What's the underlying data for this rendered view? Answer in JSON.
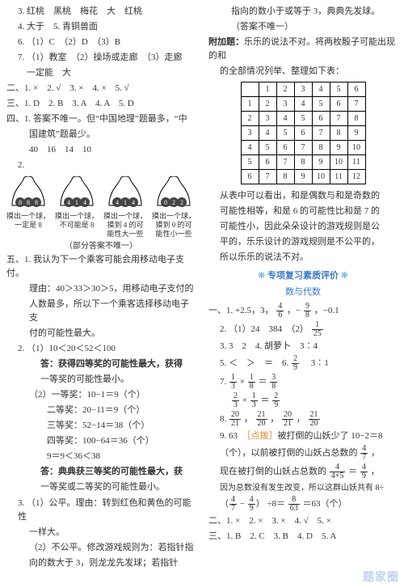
{
  "left": {
    "lines_top": [
      "3. 红桃　黑桃　梅花　大　红桃",
      "4. 大于　5. 青铜兽面",
      "6. （1）C　（2）D　（3）B",
      "7. （1）教室　（2）操场或走廊　（3）走廊",
      "　一定能　大"
    ],
    "sec2": "二、1. ×　2. √　3. ×　4. ×　5. √",
    "sec3": "三、1. D　2. B　3. A　4. A　5. D",
    "sec4_line1": "四、1. 答案不唯一。但“中国地理”题最多，“中",
    "sec4_line2": "国建筑”题最少。",
    "sec4_nums": "40　16　14　10",
    "sec4_2": "2.",
    "bells": [
      {
        "nums": [
          "8",
          "8",
          "8"
        ],
        "caption": [
          "摸出一个球，",
          "一定是 8"
        ]
      },
      {
        "nums": [
          "4",
          "1",
          "4"
        ],
        "caption": [
          "摸出一个球，",
          "不可能是 8"
        ]
      },
      {
        "nums": [
          "4",
          "1",
          "4"
        ],
        "caption": [
          "摸出一个球，",
          "摸到 4 的可",
          "能性大一些"
        ]
      },
      {
        "nums": [
          "0",
          "2",
          "2"
        ],
        "caption": [
          "摸出一个球，",
          "摸到 0 的可",
          "能性小一些"
        ]
      }
    ],
    "bell_note": "（部分答案不唯一）",
    "sec5_head": "五、1. 我认为下一个乘客可能会用移动电子支付。",
    "sec5_1_reason": [
      "理由：40＞33＞30＞5，用移动电子支付的",
      "人数最多，所以下一个乘客选择移动电子支",
      "付的可能性最大。"
    ],
    "sec5_2_1": "2. （1）10＜20＜52＜100",
    "sec5_2_1_ans": "答：获得四等奖的可能性最大，获得",
    "sec5_2_1_ans2": "一等奖的可能性最小。",
    "sec5_2_2_lines": [
      "（2）一等奖：10−1＝9（个）",
      "　　二等奖：20−11＝9（个）",
      "　　三等奖：52−14＝38（个）",
      "　　四等奖：100−64＝36（个）",
      "　　9＝9＜36＜38"
    ],
    "sec5_2_2_ans": "答：典典获三等奖的可能性最大，获",
    "sec5_2_2_ans2": "一等奖或二等奖的可能性最小。",
    "sec5_3_1": "3. （1）公平。理由：转到红色和黄色的可能性",
    "sec5_3_1b": "一样大。",
    "sec5_3_2": "（2）不公平。修改游戏规则为：若指针指",
    "sec5_3_2b": "向的数大于 3，则龙龙先发球；若指针"
  },
  "right": {
    "top_lines": [
      "指向的数小于或等于 3，典典先发球。",
      "（答案不唯一）"
    ],
    "extra_head": "附加题：",
    "extra_rest": "乐乐的说法不对。将两枚骰子可能出现的和",
    "extra_line2": "的全部情况列举、整理如下表：",
    "table": [
      [
        "",
        "1",
        "2",
        "3",
        "4",
        "5",
        "6"
      ],
      [
        "1",
        "2",
        "3",
        "4",
        "5",
        "6",
        "7"
      ],
      [
        "2",
        "3",
        "4",
        "5",
        "6",
        "7",
        "8"
      ],
      [
        "3",
        "4",
        "5",
        "6",
        "7",
        "8",
        "9"
      ],
      [
        "4",
        "5",
        "6",
        "7",
        "8",
        "9",
        "10"
      ],
      [
        "5",
        "6",
        "7",
        "8",
        "9",
        "10",
        "11"
      ],
      [
        "6",
        "7",
        "8",
        "9",
        "10",
        "11",
        "12"
      ]
    ],
    "extra_expl": [
      "从表中可以看出，和是偶数与和是奇数的",
      "可能性相等，和是 6 的可能性比和是 7 的",
      "可能性小，因此朵朵设计的游戏规则是公",
      "平的，乐乐设计的游戏规则是不公平的，",
      "所以乐乐的说法不对。"
    ],
    "section_decor": "❋ 专项复习素质评价 ❋",
    "section_sub": "数与代数",
    "s1_head": "一、",
    "s1_1_pre": "1. +2.5，3，",
    "s1_1_mid": "，−",
    "s1_1_tail": "，−0.1",
    "s1_2": "（1）24　384　（2）",
    "s1_3": "3　2　4. 胡萝卜　3∶4",
    "s1_5_pre": "5. ＜　＞　＝　6. ",
    "s1_5_tail": "　3∶1",
    "s1_7_eq": "7.",
    "s1_8": "8.",
    "s1_9_pre": "9. 63　",
    "s1_9_tag": "［点拨］",
    "s1_9_rest": "被打倒的山妖少了 10−2＝8",
    "s1_9_lines_a": "（个），以前被打倒的山妖占总数的 ",
    "s1_9_lines_b": "现在被打倒的山妖占总数的",
    "s1_9_lines_c": "因为总数没有发生改变，所以这群山妖共有 8÷",
    "s1_9_final": "÷8＝",
    "s1_9_final2": "＝63（个）",
    "s2": "二、1. ×　2. ×　3. ×　4. √　5. ×",
    "s3": "三、1. B　2. C　3. B　4. D　5. A",
    "fracs": {
      "four_sixths": {
        "n": "4",
        "d": "6"
      },
      "nine_eighths": {
        "n": "9",
        "d": "8"
      },
      "one_twentyfive": {
        "n": "1",
        "d": "25"
      },
      "two_ninth": {
        "n": "2",
        "d": "9"
      },
      "one_third": {
        "n": "1",
        "d": "3"
      },
      "one_eighth": {
        "n": "1",
        "d": "8"
      },
      "three_eighths": {
        "n": "3",
        "d": "8"
      },
      "two_three": {
        "n": "2",
        "d": "3"
      },
      "one_over_3b": {
        "n": "1",
        "d": "3"
      },
      "two_nine": {
        "n": "2",
        "d": "9"
      },
      "twenty_twentyone": {
        "n": "20",
        "d": "21"
      },
      "twentyone_twenty": {
        "n": "21",
        "d": "20"
      },
      "twenty_twentyone2": {
        "n": "20",
        "d": "21"
      },
      "twentyone_twenty2": {
        "n": "21",
        "d": "20"
      },
      "four_seven": {
        "n": "4",
        "d": "7"
      },
      "four_4p5": {
        "n": "4",
        "d": "4+5"
      },
      "four_nine": {
        "n": "4",
        "d": "9"
      },
      "four_seven2": {
        "n": "4",
        "d": "7"
      },
      "four_nine2": {
        "n": "4",
        "d": "9"
      },
      "eight_sixtythree": {
        "n": "8",
        "d": "63"
      }
    }
  },
  "watermark": "题家圈"
}
